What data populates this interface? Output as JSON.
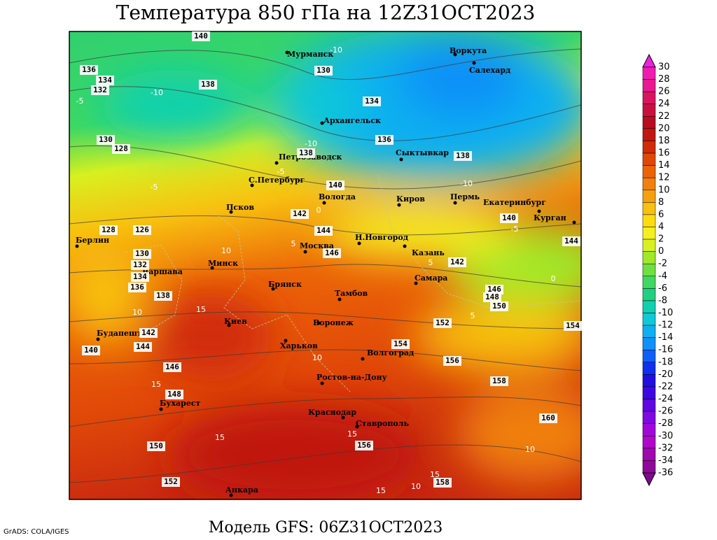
{
  "title": "Температура 850 гПа на 12Z31OCT2023",
  "footer": "Модель GFS: 06Z31OCT2023",
  "credit": "GrADS: COLA/IGES",
  "cities": [
    "Мурманск",
    "Воркута",
    "Салехард",
    "Архангельск",
    "Петрозаводск",
    "Сыктывкар",
    "С.Петербург",
    "Вологда",
    "Киров",
    "Пермь",
    "Екатеринбург",
    "Курган",
    "Псков",
    "Н.Новгород",
    "Москва",
    "Казань",
    "Берлин",
    "Минск",
    "Варшава",
    "Самара",
    "Брянск",
    "Тамбов",
    "Киев",
    "Воронеж",
    "Будапешт",
    "Харьков",
    "Волгоград",
    "Ростов-на-Дону",
    "Бухарест",
    "Краснодар",
    "Ставрополь",
    "Анкара"
  ],
  "height_labels": [
    140,
    136,
    134,
    132,
    138,
    130,
    134,
    136,
    138,
    138,
    130,
    128,
    140,
    142,
    144,
    146,
    140,
    128,
    126,
    130,
    132,
    134,
    136,
    138,
    142,
    146,
    148,
    150,
    152,
    154,
    156,
    158,
    160,
    142,
    144,
    140,
    146,
    148,
    150,
    152,
    156,
    158,
    154,
    144
  ],
  "temperature_labels": [
    -10,
    -5,
    -10,
    -5,
    -5,
    -10,
    -5,
    0,
    5,
    10,
    15,
    10,
    5,
    0,
    5,
    10,
    15,
    15,
    15,
    15,
    10,
    15,
    10,
    -10
  ],
  "colorbar": {
    "ticks": [
      30,
      28,
      26,
      24,
      22,
      20,
      18,
      16,
      14,
      12,
      10,
      8,
      6,
      4,
      2,
      0,
      -2,
      -4,
      -6,
      -8,
      -10,
      -12,
      -14,
      -16,
      -18,
      -20,
      -22,
      -24,
      -26,
      -28,
      -30,
      -32,
      -34,
      -36
    ],
    "colors": [
      "#f020e0",
      "#f01cb0",
      "#e81890",
      "#d81460",
      "#c81040",
      "#b80c20",
      "#c01810",
      "#d02c08",
      "#e04808",
      "#ec6408",
      "#f08010",
      "#f4a010",
      "#f8c010",
      "#fcdc10",
      "#f4f020",
      "#d8f020",
      "#a0e828",
      "#70e040",
      "#40d860",
      "#20d080",
      "#10d0b0",
      "#10c8d8",
      "#10b0f0",
      "#1090f8",
      "#1060f8",
      "#1030f0",
      "#2010e0",
      "#4008e0",
      "#6008e0",
      "#8008e0",
      "#a008d8",
      "#b008c8",
      "#a008b0",
      "#900898",
      "#800890"
    ]
  }
}
